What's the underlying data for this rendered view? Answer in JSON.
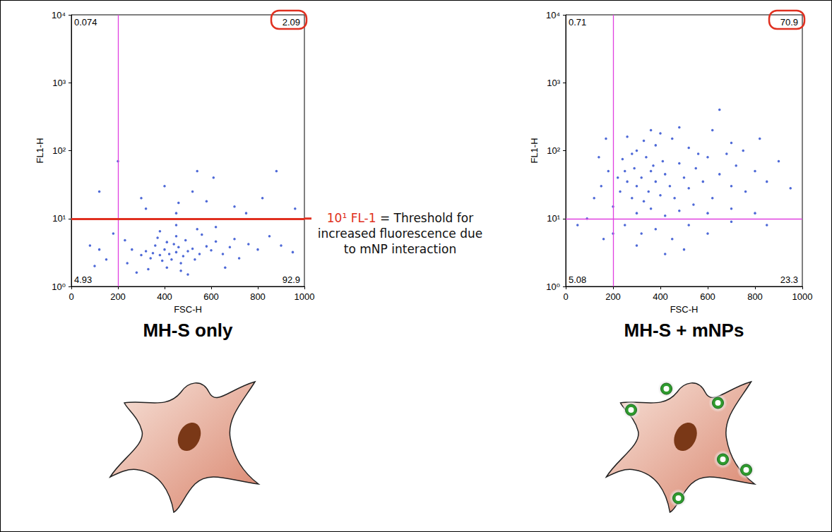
{
  "chart_data": [
    {
      "type": "scatter",
      "title": "MH-S only",
      "x_label": "FSC-H",
      "y_label": "FL1-H",
      "x": [
        420,
        450,
        480,
        400,
        430,
        460,
        500,
        380,
        440,
        470,
        520,
        410,
        390,
        350,
        550,
        360,
        490,
        530,
        340,
        580,
        600,
        320,
        450,
        410,
        470,
        620,
        650,
        300,
        560,
        370,
        680,
        700,
        260,
        240,
        720,
        760,
        800,
        850,
        900,
        950,
        230,
        280,
        500,
        380,
        540,
        620,
        450,
        330,
        660,
        150,
        120,
        80,
        180,
        100,
        320,
        450,
        580,
        700,
        520,
        400,
        610,
        750,
        820,
        960,
        880,
        200,
        540,
        300,
        120,
        460
      ],
      "values": [
        3,
        3.2,
        2.8,
        3.5,
        2.5,
        3.8,
        3.3,
        2.9,
        4.2,
        2.2,
        3.6,
        4.5,
        2.4,
        3.1,
        3.0,
        4.0,
        4.8,
        2.5,
        2.6,
        3.9,
        3.4,
        3.3,
        5.5,
        1.9,
        1.7,
        4.6,
        3.0,
        2.9,
        5.8,
        5.2,
        3.8,
        5.0,
        3.5,
        2.2,
        2.6,
        4.2,
        3.5,
        5.5,
        4.0,
        3.2,
        4.8,
        1.6,
        1.5,
        6.5,
        7.0,
        7.5,
        8.0,
        1.8,
        1.9,
        2.5,
        3.5,
        4.0,
        6.0,
        2.0,
        14,
        12,
        18,
        15,
        25,
        30,
        40,
        12,
        20,
        14,
        50,
        70,
        50,
        20,
        25,
        17
      ],
      "color": "#2f4fd0",
      "xlim": [
        0,
        1000
      ],
      "xticks": [
        0,
        200,
        400,
        600,
        800,
        1000
      ],
      "ylim": [
        1,
        10000
      ],
      "yticks": [
        {
          "value": 1,
          "label": "10⁰"
        },
        {
          "value": 10,
          "label": "10¹"
        },
        {
          "value": 100,
          "label": "10²"
        },
        {
          "value": 1000,
          "label": "10³"
        },
        {
          "value": 10000,
          "label": "10⁴"
        }
      ],
      "log": "y",
      "grid": false,
      "gates": {
        "x": 200,
        "y": 10
      },
      "quadrants": {
        "upper_left": 0.074,
        "upper_right": 2.09,
        "lower_left": 4.93,
        "lower_right": 92.9
      },
      "annotation": {
        "highlight": "10¹ FL-1",
        "text": "= Threshold for increased fluorescence due to mNP interaction"
      }
    },
    {
      "type": "scatter",
      "title": "MH-S + mNPs",
      "x_label": "FSC-H",
      "y_label": "FL1-H",
      "x": [
        300,
        350,
        380,
        320,
        400,
        360,
        280,
        420,
        330,
        370,
        290,
        440,
        260,
        410,
        340,
        460,
        500,
        480,
        230,
        250,
        520,
        550,
        580,
        600,
        620,
        650,
        700,
        720,
        760,
        800,
        850,
        900,
        950,
        300,
        380,
        450,
        520,
        620,
        650,
        700,
        400,
        330,
        280,
        240,
        220,
        200,
        300,
        360,
        420,
        480,
        540,
        600,
        700,
        800,
        250,
        320,
        380,
        450,
        520,
        600,
        700,
        300,
        420,
        500,
        850,
        200,
        180,
        150,
        120,
        90,
        160,
        50,
        140,
        170,
        560,
        680,
        750,
        820,
        260,
        360,
        480
      ],
      "values": [
        30,
        25,
        35,
        40,
        22,
        50,
        20,
        45,
        18,
        60,
        55,
        30,
        35,
        70,
        80,
        20,
        40,
        65,
        25,
        50,
        28,
        55,
        35,
        80,
        20,
        45,
        30,
        60,
        25,
        50,
        35,
        70,
        28,
        100,
        120,
        150,
        110,
        200,
        400,
        130,
        180,
        140,
        90,
        75,
        40,
        15,
        12,
        14,
        11,
        13,
        16,
        12,
        14,
        12,
        8,
        6,
        7,
        5,
        8,
        6,
        9,
        4,
        3,
        3.5,
        8,
        6,
        50,
        30,
        20,
        10,
        5,
        8,
        80,
        150,
        90,
        90,
        100,
        150,
        160,
        200,
        220
      ],
      "color": "#2f4fd0",
      "xlim": [
        0,
        1000
      ],
      "xticks": [
        0,
        200,
        400,
        600,
        800,
        1000
      ],
      "ylim": [
        1,
        10000
      ],
      "yticks": [
        {
          "value": 1,
          "label": "10⁰"
        },
        {
          "value": 10,
          "label": "10¹"
        },
        {
          "value": 100,
          "label": "10²"
        },
        {
          "value": 1000,
          "label": "10³"
        },
        {
          "value": 10000,
          "label": "10⁴"
        }
      ],
      "log": "y",
      "grid": false,
      "gates": {
        "x": 200,
        "y": 10
      },
      "quadrants": {
        "upper_left": 0.71,
        "upper_right": 70.9,
        "lower_left": 5.08,
        "lower_right": 23.3
      }
    }
  ]
}
